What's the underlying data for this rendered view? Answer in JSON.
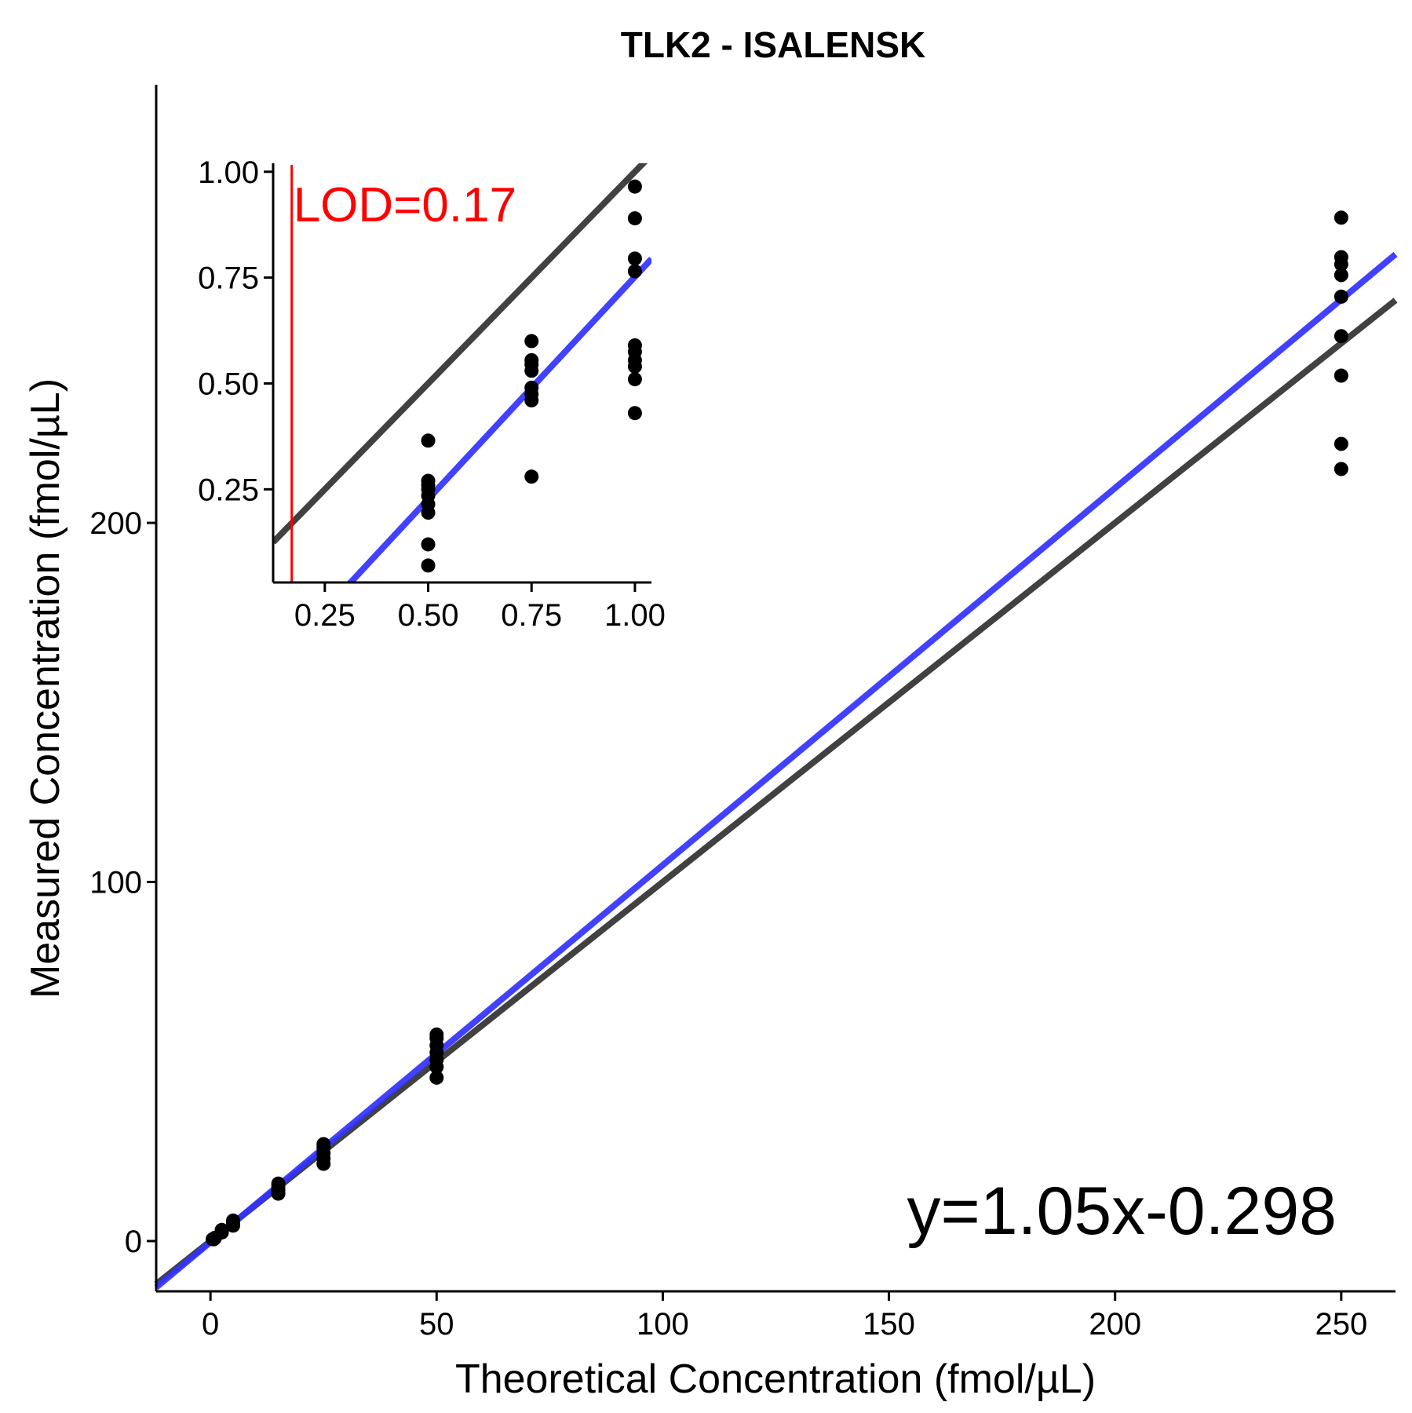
{
  "chart_data": [
    {
      "type": "scatter",
      "title": "TLK2 - ISALENSK",
      "xlabel": "Theoretical Concentration (fmol/µL)",
      "ylabel": "Measured Concentration (fmol/µL)",
      "xlim": [
        -12,
        262
      ],
      "ylim": [
        -14,
        322
      ],
      "xticks": [
        0,
        50,
        100,
        150,
        200,
        250
      ],
      "yticks": [
        0,
        100,
        200
      ],
      "xtick_labels": [
        "0",
        "50",
        "100",
        "150",
        "200",
        "250"
      ],
      "ytick_labels": [
        "0",
        "100",
        "200"
      ],
      "annotation": "y=1.05x-0.298",
      "lines": [
        {
          "color": "#333333",
          "slope": 1.0,
          "intercept": 0.0
        },
        {
          "color": "#3333ff",
          "slope": 1.05,
          "intercept": -0.298
        }
      ],
      "points": [
        {
          "x": 0.5,
          "y": 0.52
        },
        {
          "x": 0.75,
          "y": 0.5
        },
        {
          "x": 1,
          "y": 0.9
        },
        {
          "x": 2.5,
          "y": 2.4
        },
        {
          "x": 2.5,
          "y": 2.9
        },
        {
          "x": 2.5,
          "y": 3.1
        },
        {
          "x": 5,
          "y": 4.3
        },
        {
          "x": 5,
          "y": 4.9
        },
        {
          "x": 5,
          "y": 5.3
        },
        {
          "x": 5,
          "y": 5.7
        },
        {
          "x": 15,
          "y": 13.2
        },
        {
          "x": 15,
          "y": 14.2
        },
        {
          "x": 15,
          "y": 15.2
        },
        {
          "x": 15,
          "y": 16.0
        },
        {
          "x": 25,
          "y": 21.5
        },
        {
          "x": 25,
          "y": 23.0
        },
        {
          "x": 25,
          "y": 24.5
        },
        {
          "x": 25,
          "y": 26.0
        },
        {
          "x": 25,
          "y": 27.0
        },
        {
          "x": 50,
          "y": 45.5
        },
        {
          "x": 50,
          "y": 48.5
        },
        {
          "x": 50,
          "y": 50.5
        },
        {
          "x": 50,
          "y": 52.5
        },
        {
          "x": 50,
          "y": 54.5
        },
        {
          "x": 50,
          "y": 56.5
        },
        {
          "x": 50,
          "y": 57.5
        },
        {
          "x": 250,
          "y": 215
        },
        {
          "x": 250,
          "y": 222
        },
        {
          "x": 250,
          "y": 241
        },
        {
          "x": 250,
          "y": 252
        },
        {
          "x": 250,
          "y": 263
        },
        {
          "x": 250,
          "y": 269
        },
        {
          "x": 250,
          "y": 272
        },
        {
          "x": 250,
          "y": 274
        },
        {
          "x": 250,
          "y": 285
        }
      ]
    },
    {
      "type": "scatter",
      "title": "",
      "xlabel": "",
      "ylabel": "",
      "xlim": [
        0.125,
        1.04
      ],
      "ylim": [
        0.03,
        1.02
      ],
      "xticks": [
        0.25,
        0.5,
        0.75,
        1.0
      ],
      "yticks": [
        0.25,
        0.5,
        0.75,
        1.0
      ],
      "xtick_labels": [
        "0.25",
        "0.50",
        "0.75",
        "1.00"
      ],
      "ytick_labels": [
        "0.25",
        "0.50",
        "0.75",
        "1.00"
      ],
      "lod": {
        "x": 0.17,
        "label": "LOD=0.17",
        "color": "#ff0000"
      },
      "lines": [
        {
          "color": "#333333",
          "slope": 1.0,
          "intercept": 0.0
        },
        {
          "color": "#3333ff",
          "slope": 1.05,
          "intercept": -0.298
        }
      ],
      "points": [
        {
          "x": 0.5,
          "y": 0.07
        },
        {
          "x": 0.5,
          "y": 0.12
        },
        {
          "x": 0.5,
          "y": 0.195
        },
        {
          "x": 0.5,
          "y": 0.215
        },
        {
          "x": 0.5,
          "y": 0.235
        },
        {
          "x": 0.5,
          "y": 0.25
        },
        {
          "x": 0.5,
          "y": 0.26
        },
        {
          "x": 0.5,
          "y": 0.27
        },
        {
          "x": 0.5,
          "y": 0.365
        },
        {
          "x": 0.75,
          "y": 0.28
        },
        {
          "x": 0.75,
          "y": 0.46
        },
        {
          "x": 0.75,
          "y": 0.475
        },
        {
          "x": 0.75,
          "y": 0.49
        },
        {
          "x": 0.75,
          "y": 0.53
        },
        {
          "x": 0.75,
          "y": 0.545
        },
        {
          "x": 0.75,
          "y": 0.555
        },
        {
          "x": 0.75,
          "y": 0.6
        },
        {
          "x": 1.0,
          "y": 0.43
        },
        {
          "x": 1.0,
          "y": 0.51
        },
        {
          "x": 1.0,
          "y": 0.54
        },
        {
          "x": 1.0,
          "y": 0.555
        },
        {
          "x": 1.0,
          "y": 0.575
        },
        {
          "x": 1.0,
          "y": 0.59
        },
        {
          "x": 1.0,
          "y": 0.765
        },
        {
          "x": 1.0,
          "y": 0.795
        },
        {
          "x": 1.0,
          "y": 0.89
        },
        {
          "x": 1.0,
          "y": 0.965
        }
      ]
    }
  ]
}
